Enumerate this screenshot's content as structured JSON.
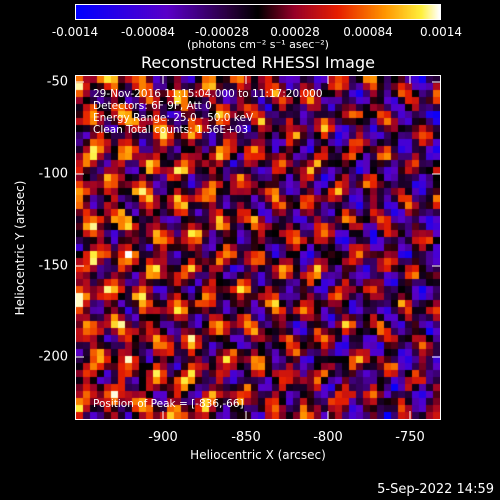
{
  "colorbar": {
    "ticks": [
      "-0.0014",
      "-0.00084",
      "-0.00028",
      "0.00028",
      "0.00084",
      "0.0014"
    ],
    "unit_label": "(photons cm⁻² s⁻¹ asec⁻²)"
  },
  "plot": {
    "title": "Reconstructed RHESSI Image",
    "annotations": [
      "29-Nov-2016 11:15:04.000 to 11:17:20.000",
      "Detectors: 6F 9F, Att 0",
      "Energy Range: 25.0 - 50.0 keV",
      "Clean     Total counts: 1.56E+03"
    ],
    "peak_label": "Position of Peak = [-836,-66]",
    "x_ticks": [
      "-900",
      "-850",
      "-800",
      "-750"
    ],
    "y_ticks": [
      "-50",
      "-100",
      "-150",
      "-200"
    ],
    "xlabel": "Heliocentric X (arcsec)",
    "ylabel": "Heliocentric Y (arcsec)"
  },
  "footer": {
    "datestamp": "5-Sep-2022 14:59"
  },
  "colors": {
    "background": "#000000",
    "axis": "#ffffff",
    "colormap_low": "#0000ff",
    "colormap_mid": "#000000",
    "colormap_high": "#ffffff"
  }
}
